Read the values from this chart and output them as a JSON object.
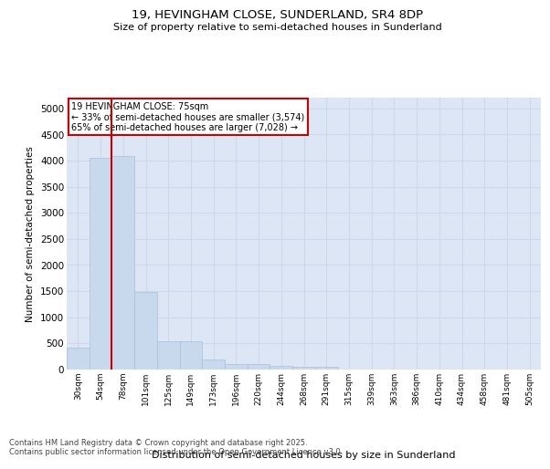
{
  "title_line1": "19, HEVINGHAM CLOSE, SUNDERLAND, SR4 8DP",
  "title_line2": "Size of property relative to semi-detached houses in Sunderland",
  "xlabel": "Distribution of semi-detached houses by size in Sunderland",
  "ylabel": "Number of semi-detached properties",
  "categories": [
    "30sqm",
    "54sqm",
    "78sqm",
    "101sqm",
    "125sqm",
    "149sqm",
    "173sqm",
    "196sqm",
    "220sqm",
    "244sqm",
    "268sqm",
    "291sqm",
    "315sqm",
    "339sqm",
    "363sqm",
    "386sqm",
    "410sqm",
    "434sqm",
    "458sqm",
    "481sqm",
    "505sqm"
  ],
  "values": [
    420,
    4060,
    4080,
    1480,
    540,
    540,
    195,
    110,
    110,
    75,
    55,
    55,
    0,
    0,
    0,
    0,
    0,
    0,
    0,
    0,
    0
  ],
  "bar_color": "#c8d9ee",
  "bar_edge_color": "#a8bfd8",
  "grid_color": "#cdd8ec",
  "background_color": "#dde6f5",
  "red_line_index": 1.5,
  "annotation_title": "19 HEVINGHAM CLOSE: 75sqm",
  "annotation_left": "← 33% of semi-detached houses are smaller (3,574)",
  "annotation_right": "65% of semi-detached houses are larger (7,028) →",
  "annotation_box_color": "#ffffff",
  "annotation_border_color": "#cc0000",
  "ylim": [
    0,
    5200
  ],
  "yticks": [
    0,
    500,
    1000,
    1500,
    2000,
    2500,
    3000,
    3500,
    4000,
    4500,
    5000
  ],
  "footer_line1": "Contains HM Land Registry data © Crown copyright and database right 2025.",
  "footer_line2": "Contains public sector information licensed under the Open Government Licence v3.0."
}
